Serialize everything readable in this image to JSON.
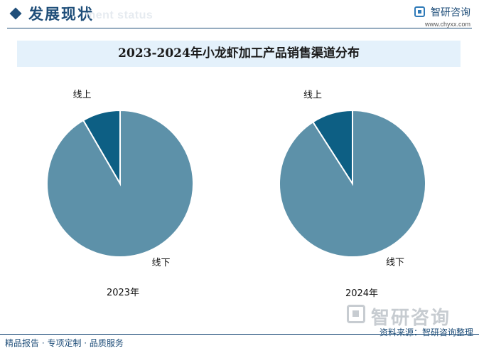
{
  "header": {
    "section_title": "发展现状",
    "ghost_text": "ment status",
    "brand_name": "智研咨询",
    "brand_url": "www.chyxx.com"
  },
  "watermark": {
    "text": "智研咨询"
  },
  "footer": {
    "left": "精品报告 · 专项定制 · 品质服务",
    "right": "资料来源：智研咨询整理"
  },
  "colors": {
    "online": "#0d5f84",
    "offline": "#5d91a9",
    "accent": "#1f4e79"
  },
  "chart_data": {
    "type": "pie",
    "title": "2023-2024年小龙虾加工产品销售渠道分布",
    "charts": [
      {
        "caption": "2023年",
        "slices": [
          {
            "label": "线上",
            "value": 8.4
          },
          {
            "label": "线下",
            "value": 91.6
          }
        ]
      },
      {
        "caption": "2024年",
        "slices": [
          {
            "label": "线上",
            "value": 9.1
          },
          {
            "label": "线下",
            "value": 90.9
          }
        ]
      }
    ]
  }
}
